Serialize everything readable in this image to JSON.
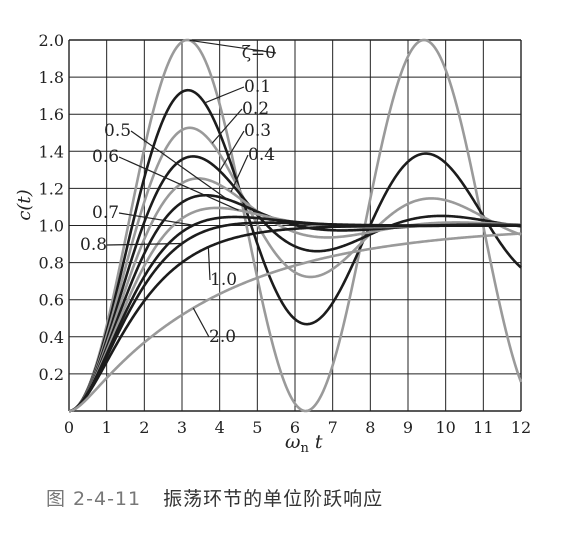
{
  "chart_data": {
    "type": "line",
    "xlabel": "ω",
    "xlabel_sub": "n",
    "xlabel_tail": " t",
    "ylabel": "c(t)",
    "xlim": [
      0,
      12
    ],
    "ylim": [
      0,
      2.0
    ],
    "grid": true,
    "x_ticks": [
      "0",
      "1",
      "2",
      "3",
      "4",
      "5",
      "6",
      "7",
      "8",
      "9",
      "10",
      "11",
      "12"
    ],
    "y_ticks": [
      "0.2",
      "0.4",
      "0.6",
      "0.8",
      "1.0",
      "1.2",
      "1.4",
      "1.6",
      "1.8",
      "2.0"
    ],
    "series": [
      {
        "name": "ζ=0",
        "zeta": 0.0,
        "color": "#9a9a9a"
      },
      {
        "name": "0.1",
        "zeta": 0.1,
        "color": "#1c1c1c"
      },
      {
        "name": "0.2",
        "zeta": 0.2,
        "color": "#9a9a9a"
      },
      {
        "name": "0.3",
        "zeta": 0.3,
        "color": "#1c1c1c"
      },
      {
        "name": "0.4",
        "zeta": 0.4,
        "color": "#9a9a9a"
      },
      {
        "name": "0.5",
        "zeta": 0.5,
        "color": "#1c1c1c"
      },
      {
        "name": "0.6",
        "zeta": 0.6,
        "color": "#9a9a9a"
      },
      {
        "name": "0.7",
        "zeta": 0.7,
        "color": "#1c1c1c"
      },
      {
        "name": "0.8",
        "zeta": 0.8,
        "color": "#1c1c1c"
      },
      {
        "name": "1.0",
        "zeta": 1.0,
        "color": "#1c1c1c"
      },
      {
        "name": "2.0",
        "zeta": 2.0,
        "color": "#9a9a9a"
      }
    ]
  },
  "caption": {
    "figure_number": "图 2-4-11",
    "text": "振荡环节的单位阶跃响应"
  }
}
